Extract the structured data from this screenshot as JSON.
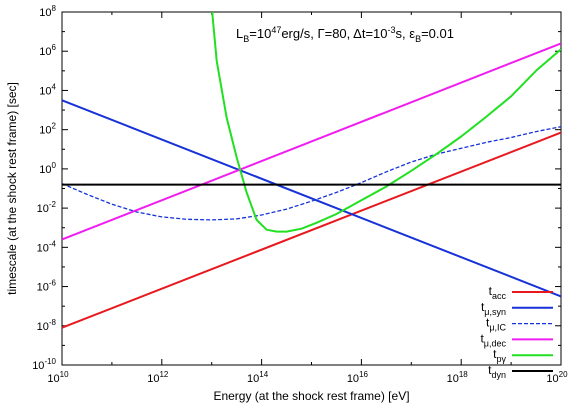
{
  "chart_data": {
    "type": "line",
    "xlabel": "Energy (at the shock rest frame) [eV]",
    "ylabel": "timescale (at the shock rest frame) [sec]",
    "xscale": "log",
    "yscale": "log",
    "xlim": [
      10000000000.0,
      1e+20
    ],
    "ylim": [
      1e-10,
      100000000.0
    ],
    "legend_position": "bottom-right",
    "grid": false,
    "annotation": {
      "parts": [
        {
          "t": "L",
          "s": "n"
        },
        {
          "t": "B",
          "s": "sub"
        },
        {
          "t": "=10",
          "s": "n"
        },
        {
          "t": "47",
          "s": "sup"
        },
        {
          "t": "erg/s, Γ=80, Δt=10",
          "s": "n"
        },
        {
          "t": "-3",
          "s": "sup"
        },
        {
          "t": "s, ε",
          "s": "n"
        },
        {
          "t": "B",
          "s": "sub"
        },
        {
          "t": "=0.01",
          "s": "n"
        }
      ]
    },
    "x_ticks": [
      {
        "exp": 10,
        "label": "10",
        "sup": "10"
      },
      {
        "exp": 12,
        "label": "10",
        "sup": "12"
      },
      {
        "exp": 14,
        "label": "10",
        "sup": "14"
      },
      {
        "exp": 16,
        "label": "10",
        "sup": "16"
      },
      {
        "exp": 18,
        "label": "10",
        "sup": "18"
      },
      {
        "exp": 20,
        "label": "10",
        "sup": "20"
      }
    ],
    "y_ticks": [
      {
        "exp": -10,
        "label": "10",
        "sup": "-10"
      },
      {
        "exp": -8,
        "label": "10",
        "sup": "-8"
      },
      {
        "exp": -6,
        "label": "10",
        "sup": "-6"
      },
      {
        "exp": -4,
        "label": "10",
        "sup": "-4"
      },
      {
        "exp": -2,
        "label": "10",
        "sup": "-2"
      },
      {
        "exp": 0,
        "label": "10",
        "sup": "0"
      },
      {
        "exp": 2,
        "label": "10",
        "sup": "2"
      },
      {
        "exp": 4,
        "label": "10",
        "sup": "4"
      },
      {
        "exp": 6,
        "label": "10",
        "sup": "6"
      },
      {
        "exp": 8,
        "label": "10",
        "sup": "8"
      }
    ],
    "series": [
      {
        "name": "t",
        "sub": "acc",
        "color": "#e8191e",
        "dash": "solid",
        "log10_x": [
          10,
          20
        ],
        "log10_y": [
          -8.1,
          1.85
        ]
      },
      {
        "name": "t",
        "sub": "μ,syn",
        "color": "#1632d8",
        "dash": "solid",
        "log10_x": [
          10,
          20
        ],
        "log10_y": [
          3.5,
          -6.5
        ]
      },
      {
        "name": "t",
        "sub": "μ,IC",
        "color": "#1632d8",
        "dash": "dashed",
        "log10_x": [
          10,
          10.5,
          11,
          11.5,
          12,
          12.5,
          13,
          13.5,
          14,
          14.5,
          15,
          15.5,
          16,
          16.5,
          17,
          17.5,
          18,
          18.5,
          19,
          19.5,
          20
        ],
        "log10_y": [
          -0.75,
          -1.3,
          -1.8,
          -2.2,
          -2.45,
          -2.57,
          -2.6,
          -2.55,
          -2.35,
          -2.05,
          -1.65,
          -1.2,
          -0.7,
          -0.15,
          0.35,
          0.75,
          1.05,
          1.35,
          1.6,
          1.9,
          2.15
        ]
      },
      {
        "name": "t",
        "sub": "μ,dec",
        "color": "#f01cf0",
        "dash": "solid",
        "log10_x": [
          10,
          20
        ],
        "log10_y": [
          -3.6,
          6.4
        ]
      },
      {
        "name": "t",
        "sub": "pγ",
        "color": "#21e021",
        "dash": "solid",
        "log10_x": [
          13.01,
          13.1,
          13.3,
          13.5,
          13.7,
          13.9,
          14.1,
          14.3,
          14.5,
          14.8,
          15.1,
          15.5,
          16,
          16.5,
          17,
          17.5,
          18,
          18.5,
          19,
          19.5,
          20
        ],
        "log10_y": [
          8,
          5.5,
          2.6,
          0.6,
          -1.2,
          -2.6,
          -3.1,
          -3.2,
          -3.2,
          -3.05,
          -2.75,
          -2.3,
          -1.6,
          -0.9,
          -0.1,
          0.75,
          1.65,
          2.65,
          3.7,
          5.0,
          6.1
        ]
      },
      {
        "name": "t",
        "sub": "dyn",
        "color": "#000000",
        "dash": "solid",
        "log10_x": [
          10,
          20
        ],
        "log10_y": [
          -0.8,
          -0.8
        ]
      }
    ]
  }
}
